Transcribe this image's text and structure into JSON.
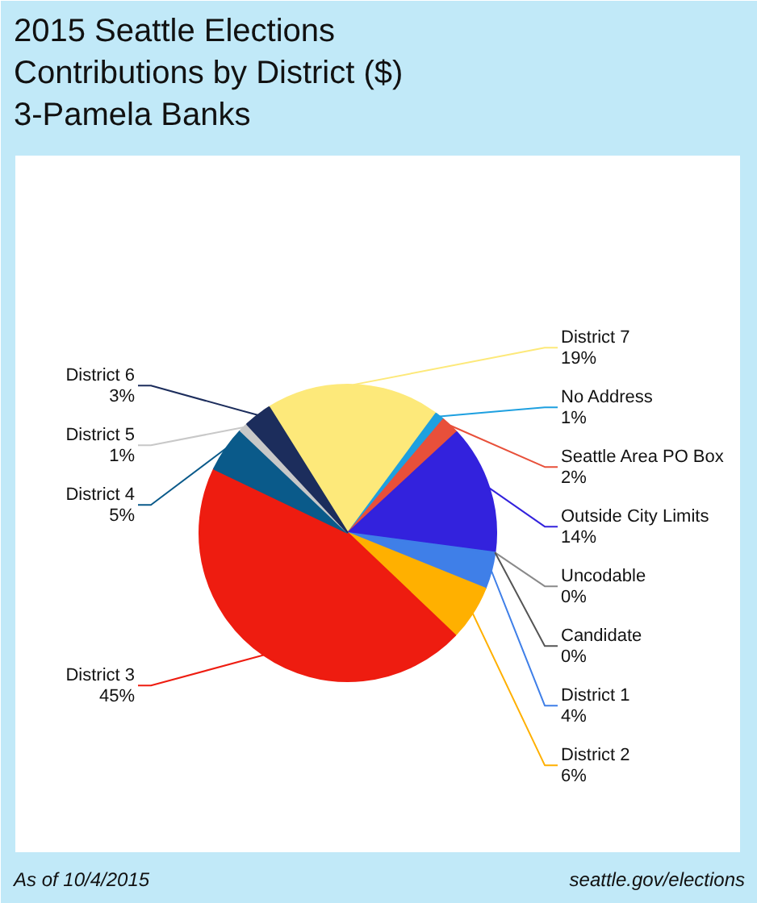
{
  "chart_data": {
    "type": "pie",
    "title": "2015 Seattle Elections Contributions by District ($)",
    "subtitle": "3-Pamela Banks",
    "categories": [
      "District 7",
      "No Address",
      "Seattle Area PO Box",
      "Outside City Limits",
      "Uncodable",
      "Candidate",
      "District 1",
      "District 2",
      "District 3",
      "District 4",
      "District 5",
      "District 6"
    ],
    "values": [
      19,
      1,
      2,
      14,
      0,
      0,
      4,
      6,
      45,
      5,
      1,
      3
    ],
    "value_labels": [
      "19%",
      "1%",
      "2%",
      "14%",
      "0%",
      "0%",
      "4%",
      "6%",
      "45%",
      "5%",
      "1%",
      "3%"
    ],
    "colors": [
      "#fde97a",
      "#1ea0e0",
      "#e8503a",
      "#3322dd",
      "#8a8a8a",
      "#555555",
      "#3f7fe8",
      "#ffb000",
      "#ee1c10",
      "#0a5a8a",
      "#c8c8c8",
      "#1c2d5c"
    ],
    "annotations": [
      "As of 10/4/2015",
      "seattle.gov/elections"
    ]
  }
}
